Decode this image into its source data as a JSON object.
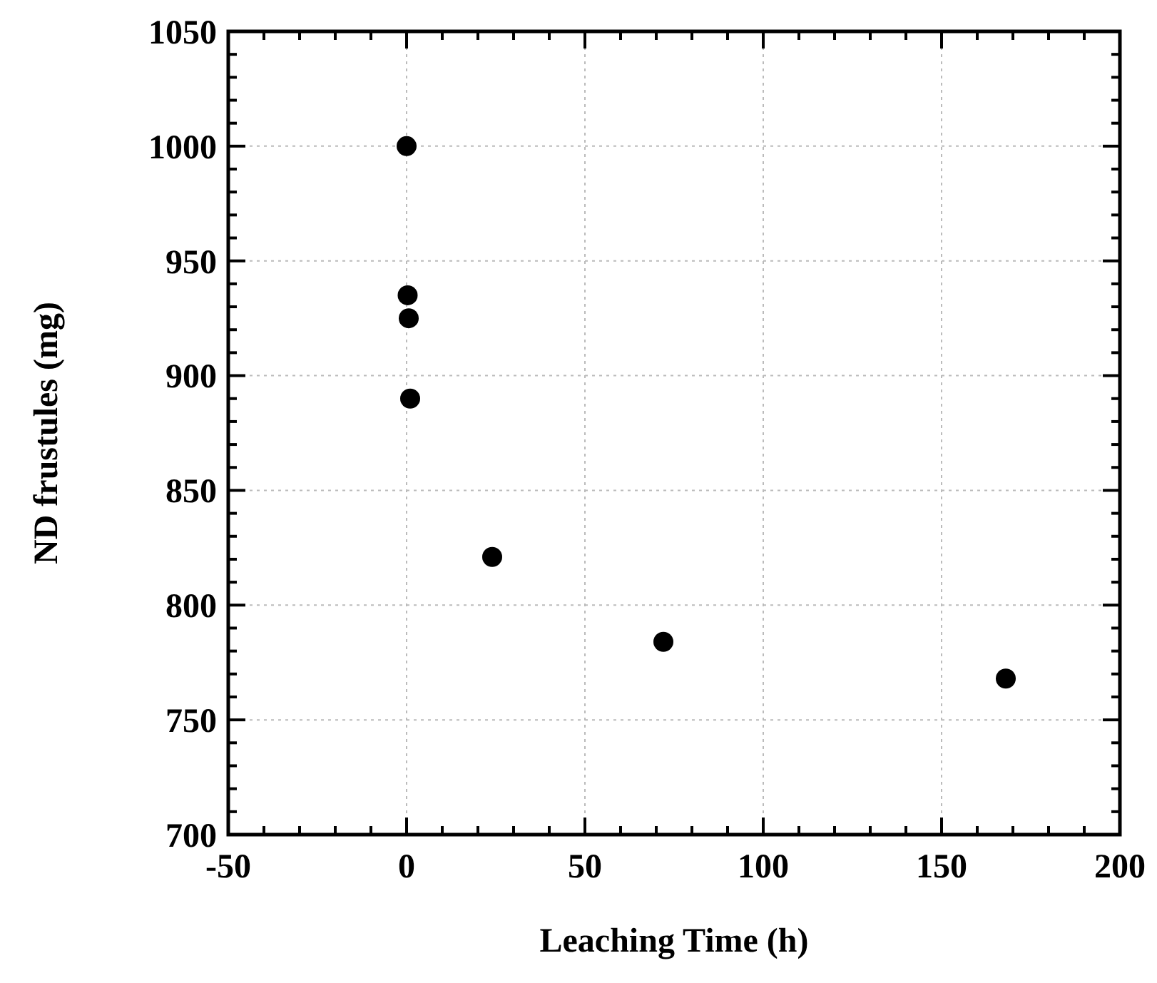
{
  "chart_data": {
    "type": "scatter",
    "xlabel": "Leaching Time (h)",
    "ylabel": "ND frustules (mg)",
    "x": [
      0,
      0.3,
      0.6,
      1,
      24,
      72,
      168
    ],
    "series": [
      {
        "color": "#000000",
        "values": [
          1000,
          935,
          925,
          890,
          821,
          784,
          768
        ]
      }
    ],
    "xlim": [
      -50,
      200
    ],
    "xticks": [
      -50,
      0,
      50,
      100,
      150,
      200
    ],
    "ylim": [
      700,
      1050
    ],
    "yticks": [
      700,
      750,
      800,
      850,
      900,
      950,
      1000,
      1050
    ],
    "grid": true,
    "marker": "circle"
  }
}
